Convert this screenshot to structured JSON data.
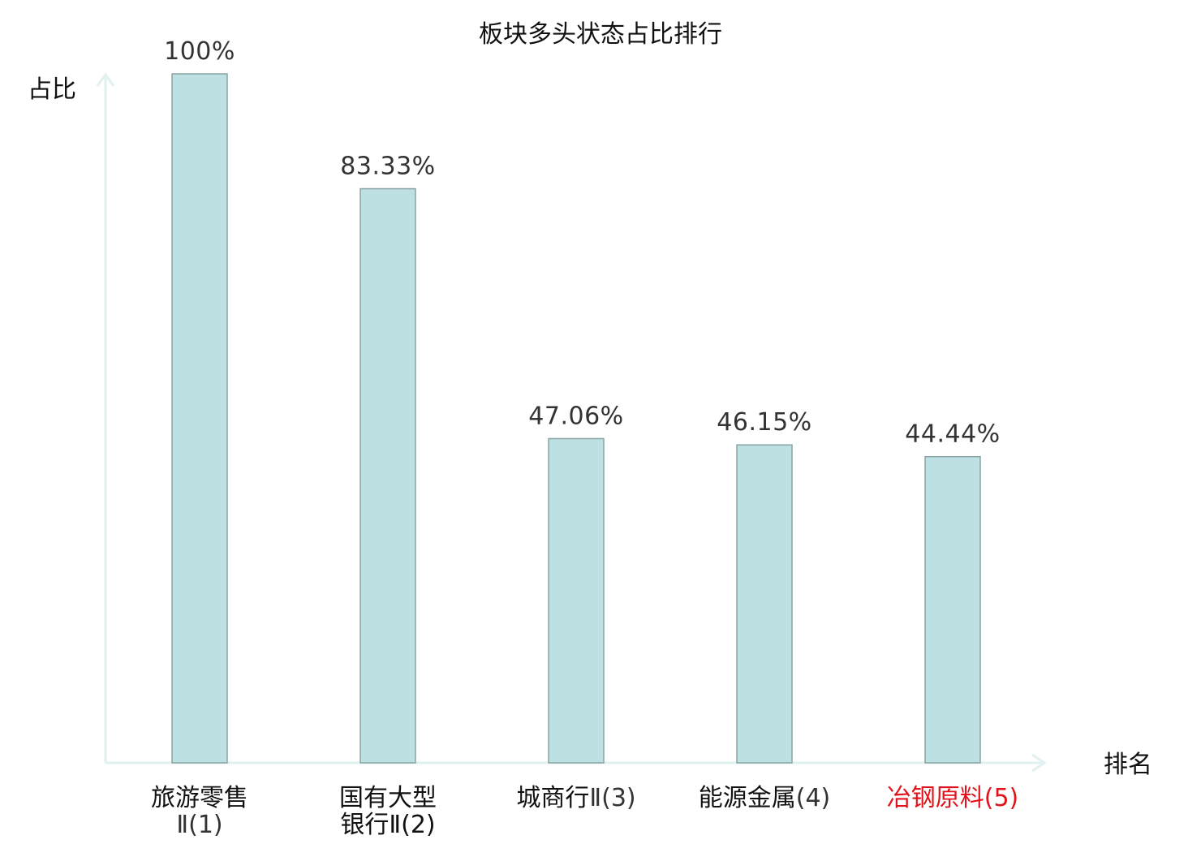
{
  "chart_data": {
    "type": "bar",
    "title": "板块多头状态占比排行",
    "ylabel": "占比",
    "xlabel": "排名",
    "ylim": [
      0,
      100
    ],
    "grid": false,
    "legend": "none",
    "categories": [
      {
        "name": "旅游零售",
        "suffix": "Ⅱ(1)",
        "highlight": false
      },
      {
        "name": "国有大型",
        "suffix": "银行Ⅱ(2)",
        "highlight": false
      },
      {
        "name": "城商行",
        "suffix": "Ⅱ(3)",
        "highlight": false
      },
      {
        "name": "能源金属",
        "suffix": "(4)",
        "highlight": false
      },
      {
        "name": "冶钢原料",
        "suffix": "(5)",
        "highlight": true
      }
    ],
    "values": [
      100,
      83.33,
      47.06,
      46.15,
      44.44
    ],
    "data_labels": [
      "100%",
      "83.33%",
      "47.06%",
      "46.15%",
      "44.44%"
    ],
    "colors": {
      "bar_fill": "#bde0e2",
      "bar_stroke": "#8aa4a5",
      "axis": "#e0f2ef",
      "highlight": "#e0121b",
      "category_text": "#111111",
      "suffix_text": "#333333"
    }
  }
}
